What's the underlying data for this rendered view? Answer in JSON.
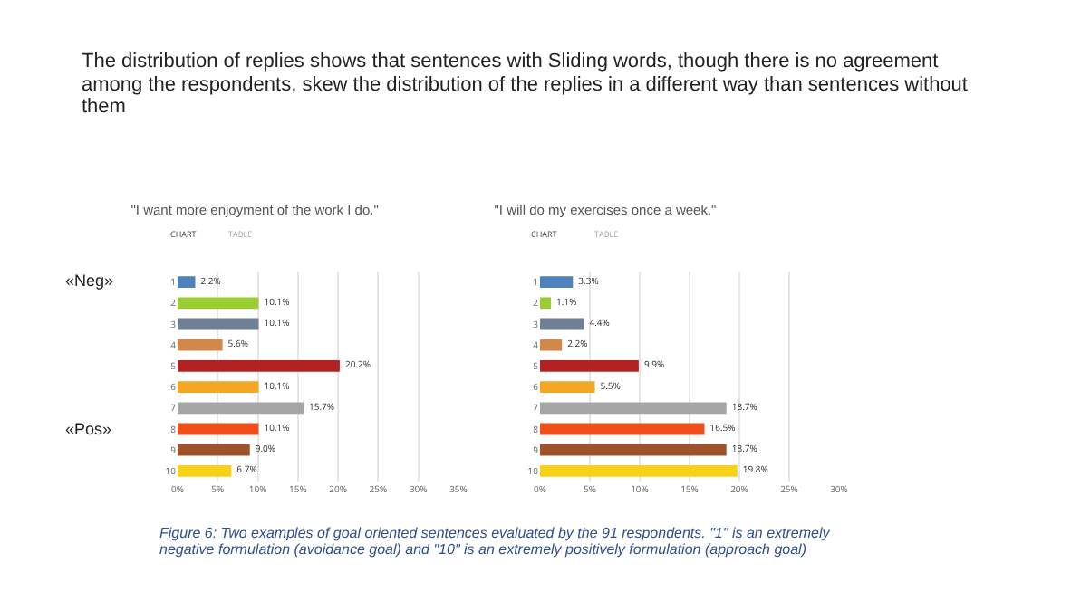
{
  "chart_data": [
    {
      "type": "bar",
      "orientation": "horizontal",
      "title": "\"I want more enjoyment of the work I do.\"",
      "categories": [
        "1",
        "2",
        "3",
        "4",
        "5",
        "6",
        "7",
        "8",
        "9",
        "10"
      ],
      "values": [
        2.2,
        10.1,
        10.1,
        5.6,
        20.2,
        10.1,
        15.7,
        10.1,
        9.0,
        6.7
      ],
      "value_labels": [
        "2.2%",
        "10.1%",
        "10.1%",
        "5.6%",
        "20.2%",
        "10.1%",
        "15.7%",
        "10.1%",
        "9.0%",
        "6.7%"
      ],
      "colors": [
        "#4f81bd",
        "#9acd32",
        "#6e7f96",
        "#d2884a",
        "#b22222",
        "#f5a623",
        "#a6a6a6",
        "#f04e1a",
        "#a0522d",
        "#f7d21a"
      ],
      "xlim": [
        0,
        35
      ],
      "xticks": [
        {
          "value": 0,
          "label": "0%"
        },
        {
          "value": 5,
          "label": "5%"
        },
        {
          "value": 10,
          "label": "10%"
        },
        {
          "value": 15,
          "label": "15%"
        },
        {
          "value": 20,
          "label": "20%"
        },
        {
          "value": 25,
          "label": "25%"
        },
        {
          "value": 30,
          "label": "30%"
        },
        {
          "value": 35,
          "label": "35%"
        }
      ],
      "grid": "x",
      "annotations": [
        "The distribution of replies shows that sentences with Sliding words, though there is no agreement among the respondents, skew the distribution of the replies in a different way than sentences without them",
        "«Neg»",
        "«Pos»",
        "CHART",
        "TABLE",
        "Figure 6: Two examples of goal oriented sentences evaluated by the 91 respondents. \"1\" is an extremely negative formulation (avoidance goal) and \"10\" is an extremely positively formulation (approach goal)"
      ]
    },
    {
      "type": "bar",
      "orientation": "horizontal",
      "title": "\"I will do my exercises once a week.\"",
      "categories": [
        "1",
        "2",
        "3",
        "4",
        "5",
        "6",
        "7",
        "8",
        "9",
        "10"
      ],
      "values": [
        3.3,
        1.1,
        4.4,
        2.2,
        9.9,
        5.5,
        18.7,
        16.5,
        18.7,
        19.8
      ],
      "value_labels": [
        "3.3%",
        "1.1%",
        "4.4%",
        "2.2%",
        "9.9%",
        "5.5%",
        "18.7%",
        "16.5%",
        "18.7%",
        "19.8%"
      ],
      "colors": [
        "#4f81bd",
        "#9acd32",
        "#6e7f96",
        "#d2884a",
        "#b22222",
        "#f5a623",
        "#a6a6a6",
        "#f04e1a",
        "#a0522d",
        "#f7d21a"
      ],
      "xlim": [
        0,
        30
      ],
      "xticks": [
        {
          "value": 0,
          "label": "0%"
        },
        {
          "value": 5,
          "label": "5%"
        },
        {
          "value": 10,
          "label": "10%"
        },
        {
          "value": 15,
          "label": "15%"
        },
        {
          "value": 20,
          "label": "20%"
        },
        {
          "value": 25,
          "label": "25%"
        },
        {
          "value": 30,
          "label": "30%"
        }
      ],
      "grid": "x",
      "annotations": [
        "CHART",
        "TABLE"
      ]
    }
  ]
}
